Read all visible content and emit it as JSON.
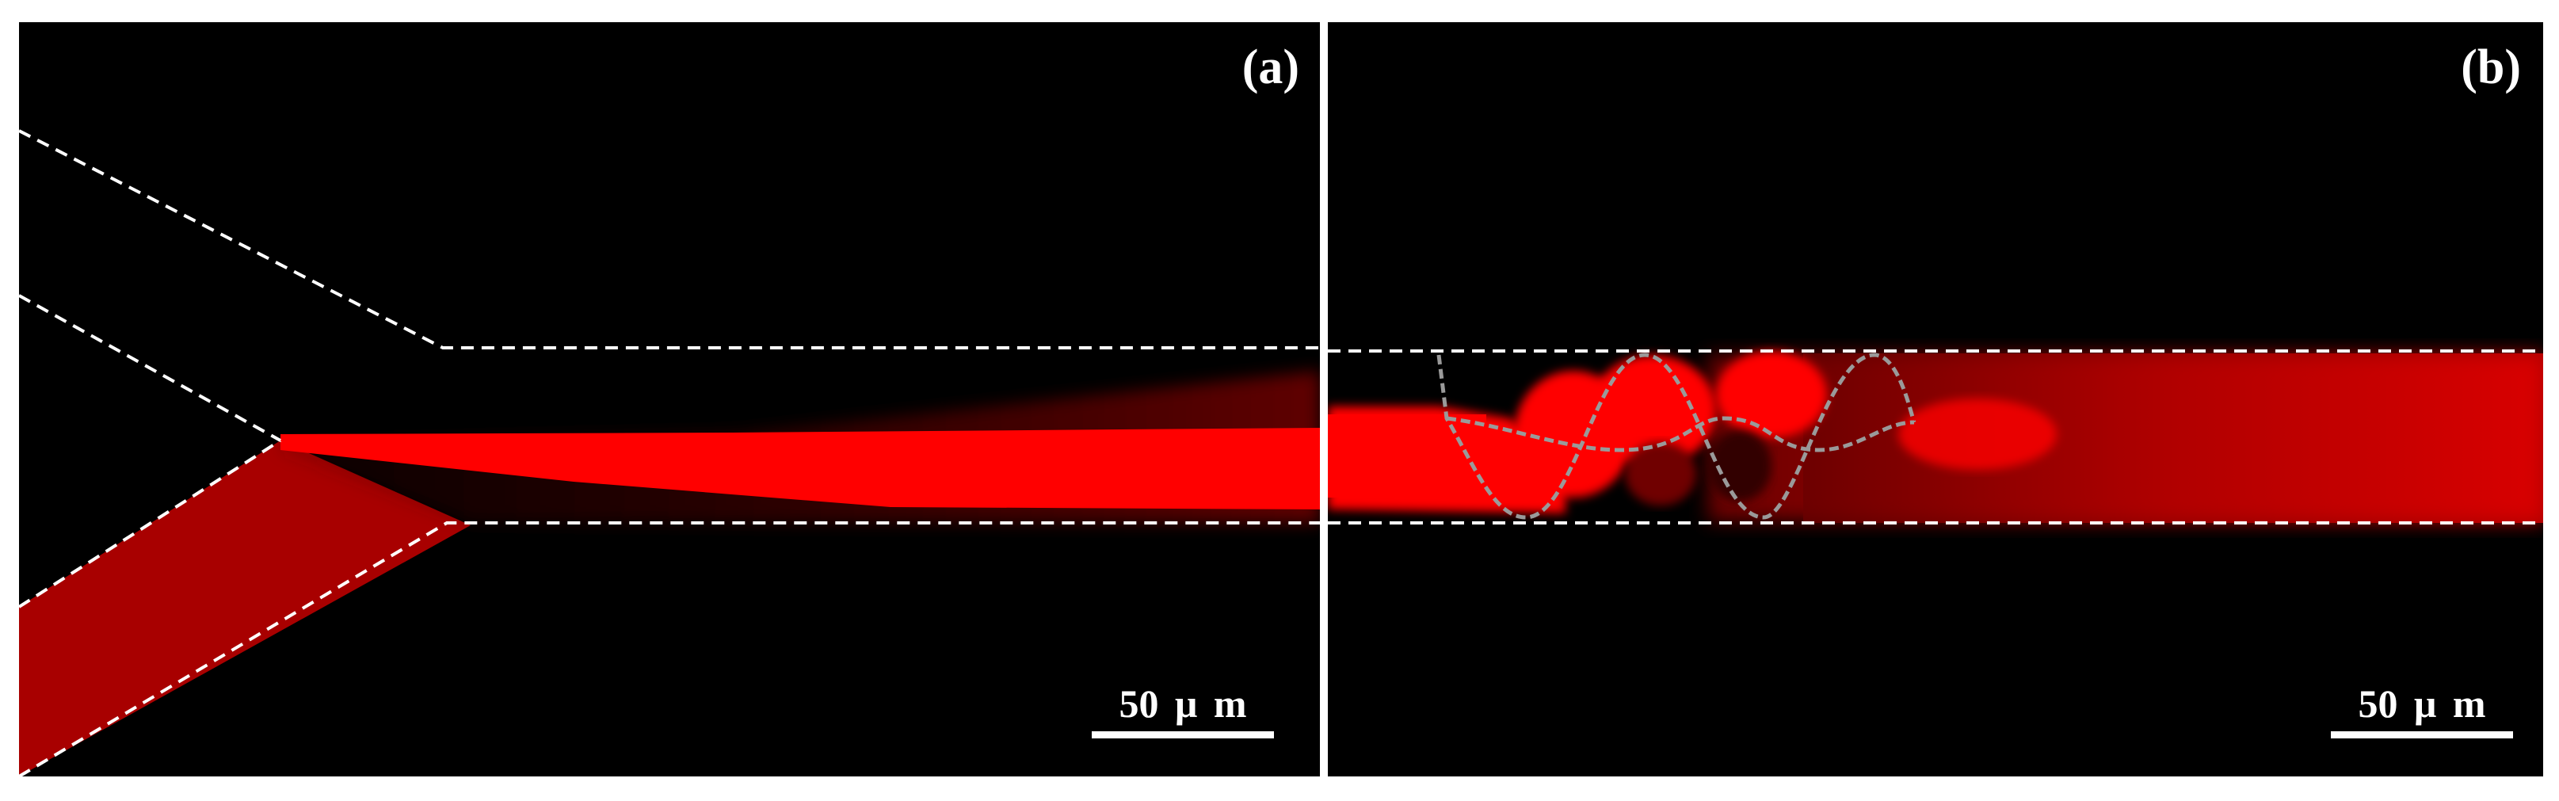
{
  "panels": [
    {
      "label": "(a)",
      "scale_bar": "50 μ m"
    },
    {
      "label": "(b)",
      "scale_bar": "50 μ m"
    }
  ],
  "colors": {
    "background": "#000000",
    "fluid": "#ff0000",
    "fluid_dark": "#a80000",
    "boundary": "#ffffff",
    "wave": "#9a9a9a"
  }
}
